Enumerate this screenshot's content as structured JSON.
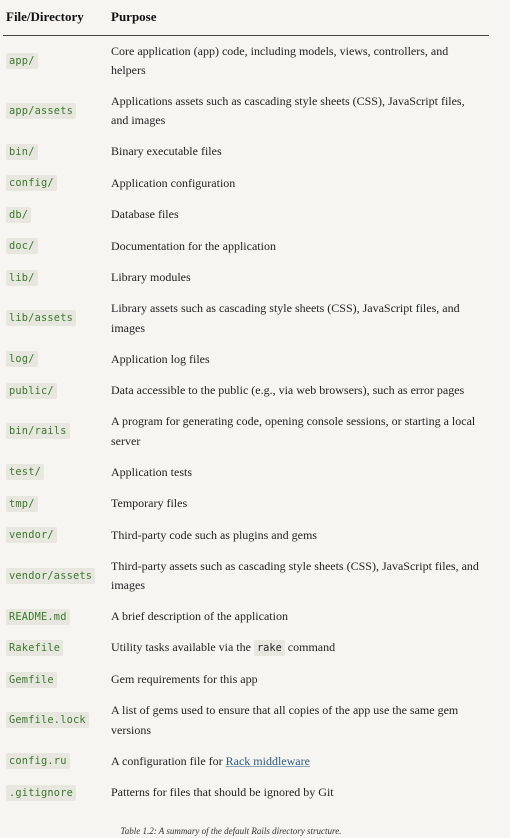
{
  "table": {
    "headers": [
      "File/Directory",
      "Purpose"
    ],
    "rows": [
      {
        "file": "app/",
        "purpose": "Core application (app) code, including models, views, controllers, and helpers"
      },
      {
        "file": "app/assets",
        "purpose": "Applications assets such as cascading style sheets (CSS), JavaScript files, and images"
      },
      {
        "file": "bin/",
        "purpose": "Binary executable files"
      },
      {
        "file": "config/",
        "purpose": "Application configuration"
      },
      {
        "file": "db/",
        "purpose": "Database files"
      },
      {
        "file": "doc/",
        "purpose": "Documentation for the application"
      },
      {
        "file": "lib/",
        "purpose": "Library modules"
      },
      {
        "file": "lib/assets",
        "purpose": "Library assets such as cascading style sheets (CSS), JavaScript files, and images"
      },
      {
        "file": "log/",
        "purpose": "Application log files"
      },
      {
        "file": "public/",
        "purpose": "Data accessible to the public (e.g., via web browsers), such as error pages"
      },
      {
        "file": "bin/rails",
        "purpose": "A program for generating code, opening console sessions, or starting a local server"
      },
      {
        "file": "test/",
        "purpose": "Application tests"
      },
      {
        "file": "tmp/",
        "purpose": "Temporary files"
      },
      {
        "file": "vendor/",
        "purpose": "Third-party code such as plugins and gems"
      },
      {
        "file": "vendor/assets",
        "purpose": "Third-party assets such as cascading style sheets (CSS), JavaScript files, and images"
      },
      {
        "file": "README.md",
        "purpose": "A brief description of the application"
      },
      {
        "file": "Rakefile",
        "purpose_before": "Utility tasks available via the ",
        "purpose_code": "rake",
        "purpose_after": " command"
      },
      {
        "file": "Gemfile",
        "purpose": "Gem requirements for this app"
      },
      {
        "file": "Gemfile.lock",
        "purpose": "A list of gems used to ensure that all copies of the app use the same gem versions"
      },
      {
        "file": "config.ru",
        "purpose_before": "A configuration file for ",
        "purpose_link": "Rack middleware"
      },
      {
        "file": ".gitignore",
        "purpose": "Patterns for files that should be ignored by Git"
      }
    ]
  },
  "caption": "Table 1.2:  A summary of the default Rails directory structure.",
  "colors": {
    "background": "#f6f5f1",
    "code_background": "#e7e6df",
    "code_text": "#3a7a2b",
    "link": "#2f5b7c"
  }
}
